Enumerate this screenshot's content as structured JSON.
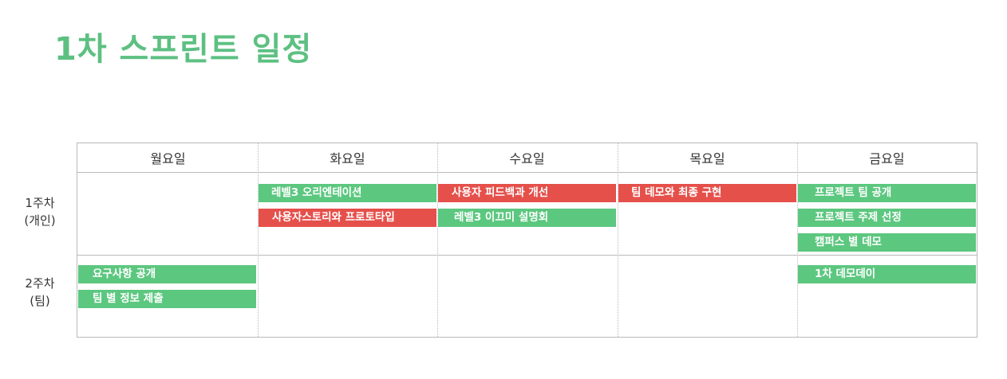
{
  "title": "1차 스프린트 일정",
  "colors": {
    "title": "#5dc082",
    "green": "#5cc77f",
    "red": "#e5504b",
    "border": "#b9b9b9"
  },
  "days": [
    "월요일",
    "화요일",
    "수요일",
    "목요일",
    "금요일"
  ],
  "weeks": [
    {
      "line1": "1주차",
      "line2": "(개인)"
    },
    {
      "line1": "2주차",
      "line2": "(팀)"
    }
  ],
  "events": [
    {
      "label": "레벨3 오리엔테이션",
      "color": "green",
      "week": 1,
      "day": "화요일"
    },
    {
      "label": "사용자스토리와 프로토타입",
      "color": "red",
      "week": 1,
      "day": "화요일"
    },
    {
      "label": "사용자 피드백과 개선",
      "color": "red",
      "week": 1,
      "day": "수요일"
    },
    {
      "label": "레벨3 이끄미 설명회",
      "color": "green",
      "week": 1,
      "day": "수요일"
    },
    {
      "label": "팀 데모와 최종 구현",
      "color": "red",
      "week": 1,
      "day": "목요일"
    },
    {
      "label": "프로젝트 팀 공개",
      "color": "green",
      "week": 1,
      "day": "금요일"
    },
    {
      "label": "프로젝트 주제 선정",
      "color": "green",
      "week": 1,
      "day": "금요일"
    },
    {
      "label": "캠퍼스 별 데모",
      "color": "green",
      "week": 1,
      "day": "금요일"
    },
    {
      "label": "요구사항 공개",
      "color": "green",
      "week": 2,
      "day": "월요일"
    },
    {
      "label": "팀 별 정보 제출",
      "color": "green",
      "week": 2,
      "day": "월요일"
    },
    {
      "label": "1차 데모데이",
      "color": "green",
      "week": 2,
      "day": "금요일"
    }
  ]
}
